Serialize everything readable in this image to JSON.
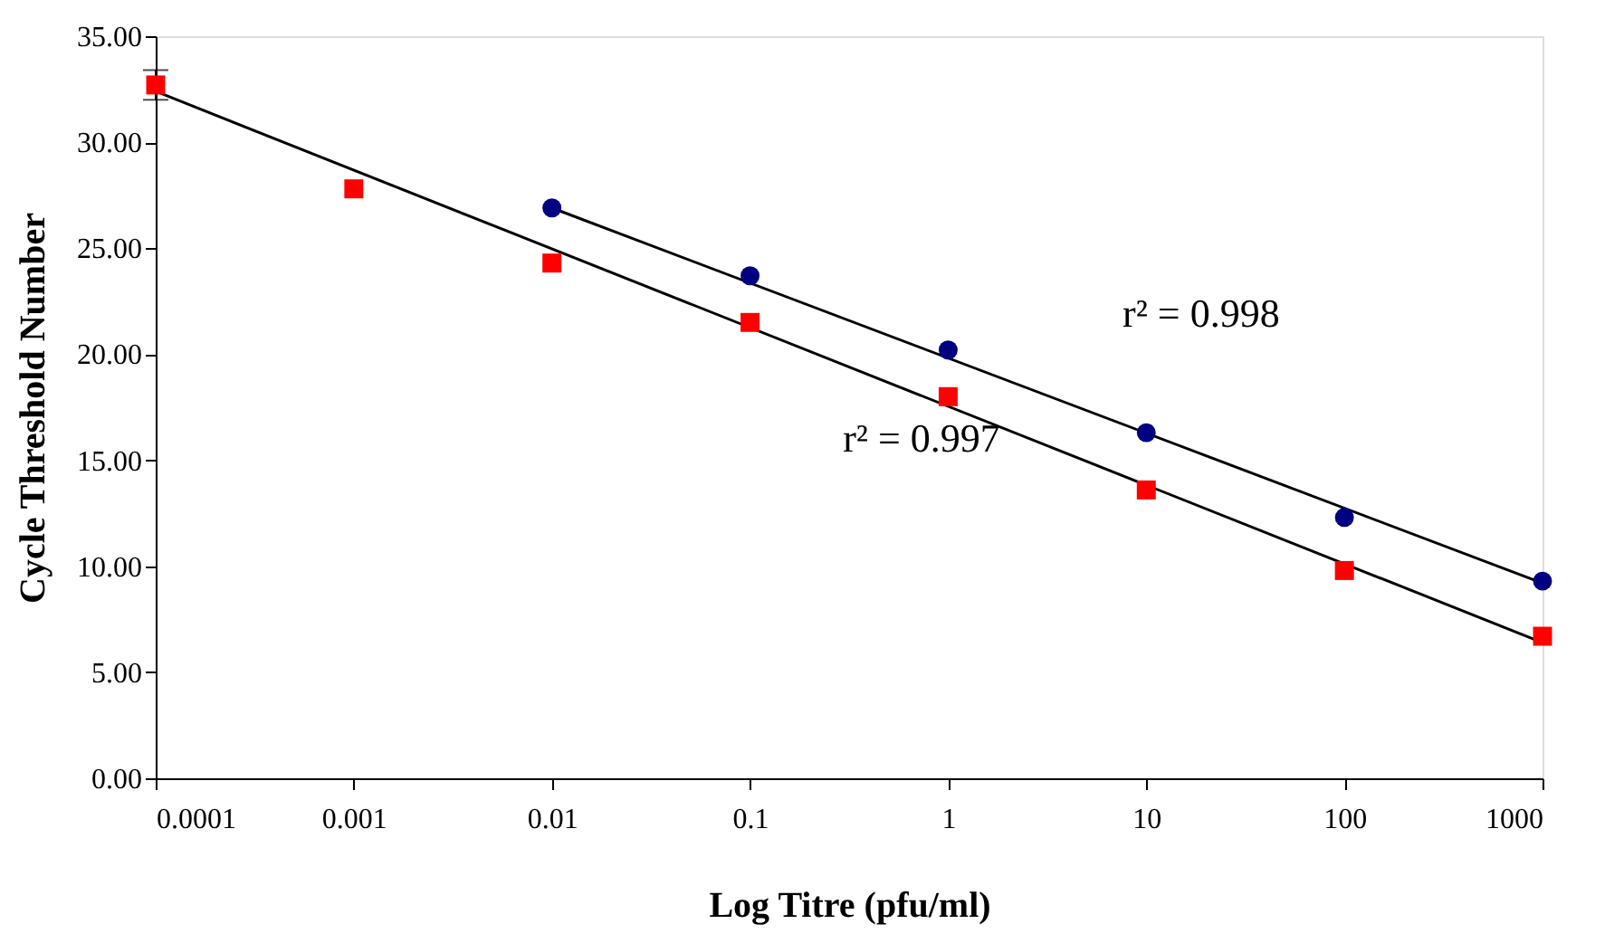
{
  "chart_data": {
    "type": "scatter",
    "xlabel": "Log Titre (pfu/ml)",
    "ylabel": "Cycle Threshold Number",
    "log": "x",
    "grid": false,
    "legend": false,
    "xlim": [
      0.0001,
      1000
    ],
    "xticks": [
      0.0001,
      0.001,
      0.01,
      0.1,
      1,
      10,
      100,
      1000
    ],
    "ylim": [
      0,
      35
    ],
    "yticks": [
      {
        "value": 0,
        "label": "0.00"
      },
      {
        "value": 5,
        "label": "5.00"
      },
      {
        "value": 10,
        "label": "10.00"
      },
      {
        "value": 15,
        "label": "15.00"
      },
      {
        "value": 20,
        "label": "20.00"
      },
      {
        "value": 25,
        "label": "25.00"
      },
      {
        "value": 30,
        "label": "30.00"
      },
      {
        "value": 35,
        "label": "35.00"
      }
    ],
    "series": [
      {
        "type": "line",
        "color": "#000000",
        "marker": "none",
        "line_style": "solid",
        "x": [
          0.0001,
          1000
        ],
        "values": [
          32.4,
          6.4
        ]
      },
      {
        "type": "line",
        "color": "#000000",
        "marker": "none",
        "line_style": "solid",
        "x": [
          0.01,
          1000
        ],
        "values": [
          26.9,
          9.2
        ]
      },
      {
        "color": "#ff0000",
        "marker": "square",
        "x": [
          0.0001,
          0.001,
          0.01,
          0.1,
          1,
          10,
          100,
          1000
        ],
        "values": [
          32.7,
          27.8,
          24.3,
          21.5,
          18.0,
          13.6,
          9.8,
          6.7
        ],
        "errors": [
          0.7,
          null,
          null,
          null,
          null,
          null,
          null,
          null
        ]
      },
      {
        "color": "#000080",
        "marker": "circle",
        "x": [
          0.01,
          0.1,
          1,
          10,
          100,
          1000
        ],
        "values": [
          26.9,
          23.7,
          20.2,
          16.3,
          12.3,
          9.3
        ]
      }
    ],
    "annotations": [
      "r² = 0.998",
      "r² = 0.997"
    ]
  }
}
